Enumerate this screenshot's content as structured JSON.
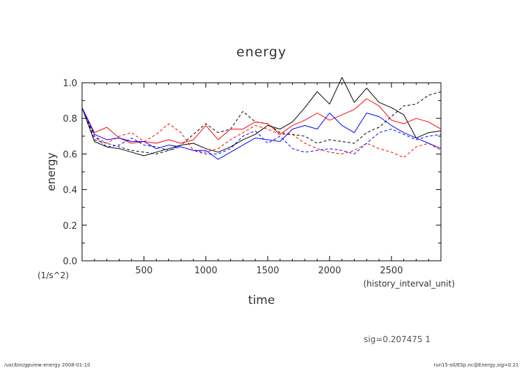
{
  "chart_data": {
    "type": "line",
    "title": "energy",
    "xlabel": "time",
    "xunits": "(history_interval_unit)",
    "ylabel": "energy",
    "yunits": "(1/s^2)",
    "xlim": [
      0,
      2900
    ],
    "ylim": [
      0.0,
      1.0
    ],
    "xticks": [
      500,
      1000,
      1500,
      2000,
      2500
    ],
    "yticks": [
      0.0,
      0.2,
      0.4,
      0.6,
      0.8,
      1.0
    ],
    "xtick_labels": [
      "500",
      "1000",
      "1500",
      "2000",
      "2500"
    ],
    "ytick_labels": [
      "0.0",
      "0.2",
      "0.4",
      "0.6",
      "0.8",
      "1.0"
    ],
    "grid": false,
    "colors": {
      "black": "#000000",
      "red": "#ff0000",
      "blue": "#0000ff",
      "axis": "#000000"
    },
    "x": [
      0,
      100,
      200,
      300,
      400,
      500,
      600,
      700,
      800,
      900,
      1000,
      1100,
      1200,
      1300,
      1400,
      1500,
      1600,
      1700,
      1800,
      1900,
      2000,
      2100,
      2200,
      2300,
      2400,
      2500,
      2600,
      2700,
      2800,
      2900
    ],
    "series": [
      {
        "name": "black-solid",
        "color": "#000000",
        "dash": false,
        "values": [
          0.86,
          0.67,
          0.64,
          0.63,
          0.61,
          0.59,
          0.61,
          0.63,
          0.65,
          0.66,
          0.63,
          0.61,
          0.64,
          0.68,
          0.71,
          0.76,
          0.74,
          0.78,
          0.86,
          0.95,
          0.88,
          1.03,
          0.89,
          0.97,
          0.89,
          0.86,
          0.82,
          0.69,
          0.72,
          0.73
        ]
      },
      {
        "name": "black-dashed",
        "color": "#000000",
        "dash": true,
        "values": [
          0.86,
          0.68,
          0.66,
          0.64,
          0.62,
          0.61,
          0.6,
          0.62,
          0.65,
          0.71,
          0.77,
          0.72,
          0.74,
          0.84,
          0.78,
          0.77,
          0.72,
          0.71,
          0.7,
          0.66,
          0.68,
          0.67,
          0.66,
          0.72,
          0.75,
          0.81,
          0.87,
          0.88,
          0.93,
          0.95
        ]
      },
      {
        "name": "red-solid",
        "color": "#ff0000",
        "dash": false,
        "values": [
          0.86,
          0.72,
          0.75,
          0.69,
          0.66,
          0.67,
          0.66,
          0.68,
          0.66,
          0.68,
          0.76,
          0.68,
          0.74,
          0.74,
          0.78,
          0.77,
          0.71,
          0.76,
          0.79,
          0.83,
          0.79,
          0.82,
          0.85,
          0.91,
          0.87,
          0.79,
          0.77,
          0.8,
          0.78,
          0.74
        ]
      },
      {
        "name": "red-dashed",
        "color": "#ff0000",
        "dash": true,
        "values": [
          0.86,
          0.7,
          0.66,
          0.7,
          0.72,
          0.67,
          0.71,
          0.77,
          0.72,
          0.62,
          0.61,
          0.63,
          0.68,
          0.72,
          0.76,
          0.74,
          0.71,
          0.71,
          0.66,
          0.63,
          0.61,
          0.6,
          0.62,
          0.66,
          0.63,
          0.61,
          0.58,
          0.64,
          0.66,
          0.62
        ]
      },
      {
        "name": "blue-solid",
        "color": "#0000ff",
        "dash": false,
        "values": [
          0.86,
          0.71,
          0.68,
          0.69,
          0.67,
          0.67,
          0.63,
          0.65,
          0.64,
          0.62,
          0.62,
          0.57,
          0.61,
          0.65,
          0.69,
          0.68,
          0.67,
          0.74,
          0.76,
          0.74,
          0.83,
          0.76,
          0.72,
          0.83,
          0.81,
          0.76,
          0.72,
          0.69,
          0.66,
          0.63
        ]
      },
      {
        "name": "blue-dashed",
        "color": "#0000ff",
        "dash": true,
        "values": [
          0.86,
          0.7,
          0.64,
          0.65,
          0.69,
          0.65,
          0.64,
          0.62,
          0.64,
          0.62,
          0.6,
          0.6,
          0.63,
          0.7,
          0.73,
          0.66,
          0.7,
          0.63,
          0.61,
          0.62,
          0.63,
          0.62,
          0.6,
          0.66,
          0.72,
          0.74,
          0.71,
          0.68,
          0.7,
          0.71
        ]
      }
    ]
  },
  "sig_text": "sig=0.207475  1",
  "footer_left": "/usr/bin/gpview-energy  2008-01-10",
  "footer_right": "run15-s0/ESp.nc@Energy,sig=0.21"
}
